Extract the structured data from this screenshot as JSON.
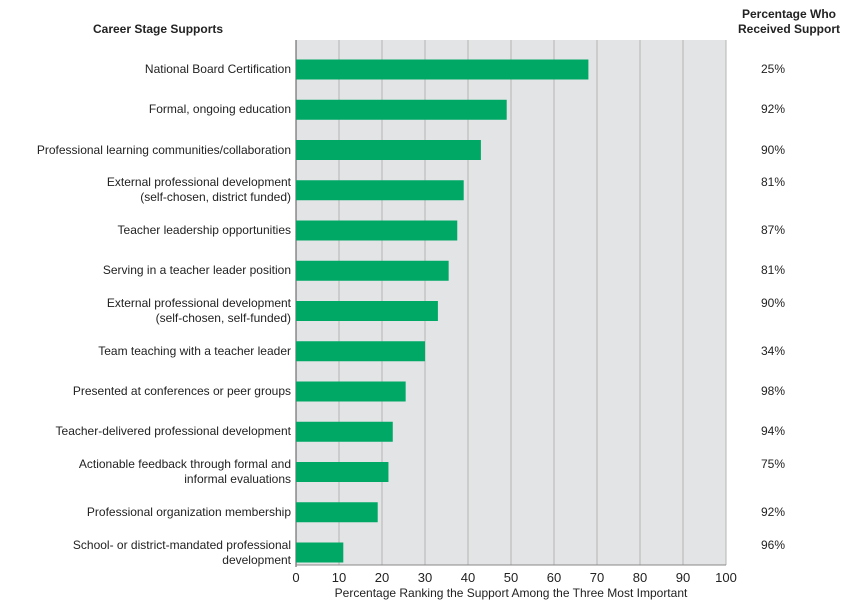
{
  "headers": {
    "left": "Career Stage Supports",
    "right_line1": "Percentage Who",
    "right_line2": "Received Support"
  },
  "chart_data": {
    "type": "bar",
    "orientation": "horizontal",
    "categories": [
      [
        "National Board Certification"
      ],
      [
        "Formal, ongoing education"
      ],
      [
        "Professional learning communities/collaboration"
      ],
      [
        "External professional development",
        "(self-chosen, district funded)"
      ],
      [
        "Teacher leadership opportunities"
      ],
      [
        "Serving in a teacher leader position"
      ],
      [
        "External professional development",
        "(self-chosen, self-funded)"
      ],
      [
        "Team teaching with a teacher leader"
      ],
      [
        "Presented at conferences or peer groups"
      ],
      [
        "Teacher-delivered professional development"
      ],
      [
        "Actionable feedback through formal and",
        "informal evaluations"
      ],
      [
        "Professional organization membership"
      ],
      [
        "School- or district-mandated professional",
        "development"
      ]
    ],
    "values": [
      68,
      49,
      43,
      39,
      37.5,
      35.5,
      33,
      30,
      25.5,
      22.5,
      21.5,
      19,
      11
    ],
    "received": [
      "25%",
      "92%",
      "90%",
      "81%",
      "87%",
      "81%",
      "90%",
      "34%",
      "98%",
      "94%",
      "75%",
      "92%",
      "96%"
    ],
    "xlim": [
      0,
      100
    ],
    "xticks": [
      "0",
      "10",
      "20",
      "30",
      "40",
      "50",
      "60",
      "70",
      "80",
      "90",
      "100"
    ],
    "xlabel": "Percentage Ranking the Support Among the Three Most Important",
    "colors": {
      "bar": "#00a866",
      "plot_bg": "#e3e4e6",
      "grid": "#b4b4b4"
    }
  }
}
